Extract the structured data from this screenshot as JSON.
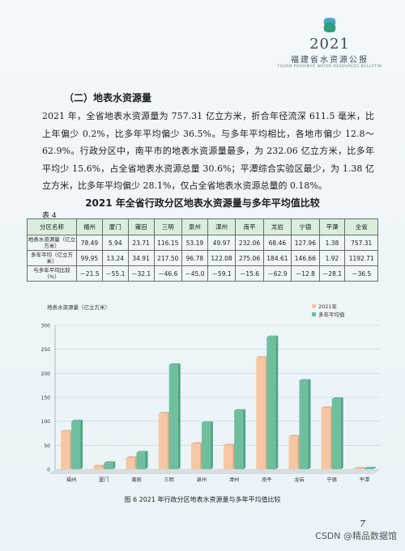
{
  "header": {
    "year": "2021",
    "title_cn": "福建省水资源公报",
    "title_en": "FUJIAN PROVINCE WATER RESOURCES BULLETIN"
  },
  "section_title": "（二）地表水资源量",
  "paragraph": "2021 年，全省地表水资源量为 757.31 亿立方米，折合年径流深 611.5 毫米，比上年偏少 0.2%，比多年平均偏少 36.5%。与多年平均相比，各地市偏少 12.8～62.9%。行政分区中，南平市的地表水资源量最多，为 232.06 亿立方米，比多年平均少 15.6%，占全省地表水资源总量 30.6%；平潭综合实验区最少，为 1.38 亿立方米，比多年平均偏少 28.1%，仅占全省地表水资源总量的 0.18%。",
  "table": {
    "title": "2021 年全省行政分区地表水资源量与多年平均值比较",
    "label": "表 4",
    "header_first": "分区名称",
    "regions": [
      "福州",
      "厦门",
      "莆田",
      "三明",
      "泉州",
      "漳州",
      "南平",
      "龙岩",
      "宁德",
      "平潭",
      "全省"
    ],
    "rows": [
      {
        "head": "地表水资源量（亿立方米）",
        "values": [
          "78.49",
          "5.94",
          "23.71",
          "116.15",
          "53.19",
          "49.97",
          "232.06",
          "68.46",
          "127.96",
          "1.38",
          "757.31"
        ]
      },
      {
        "head": "多年平均（亿立方米）",
        "values": [
          "99.95",
          "13.24",
          "34.91",
          "217.50",
          "96.78",
          "122.08",
          "275.06",
          "184.61",
          "146.66",
          "1.92",
          "1192.71"
        ]
      },
      {
        "head": "与多年平均比较（%）",
        "values": [
          "－21.5",
          "－55.1",
          "－32.1",
          "－46.6",
          "－45.0",
          "－59.1",
          "－15.6",
          "－62.9",
          "－12.8",
          "－28.1",
          "－36.5"
        ]
      }
    ]
  },
  "chart_data": {
    "type": "bar",
    "ylabel": "地表水资源量（亿立方米）",
    "ylim": [
      0,
      300
    ],
    "yticks": [
      0,
      50,
      100,
      150,
      200,
      250,
      300
    ],
    "categories": [
      "福州",
      "厦门",
      "莆田",
      "三明",
      "泉州",
      "漳州",
      "南平",
      "龙岩",
      "宁德",
      "平潭"
    ],
    "series": [
      {
        "name": "2021年",
        "values": [
          78.49,
          5.94,
          23.71,
          116.15,
          53.19,
          49.97,
          232.06,
          68.46,
          127.96,
          1.38
        ]
      },
      {
        "name": "多年平均值",
        "values": [
          99.95,
          13.24,
          34.91,
          217.5,
          96.78,
          122.08,
          275.06,
          184.61,
          146.66,
          1.92
        ]
      }
    ],
    "legend": "top-right",
    "colors": {
      "series_2021": "#f6c7a4",
      "series_avg": "#6fbf9e"
    }
  },
  "caption": "图 6   2021 年行政分区地表水资源量与多年平均值比较",
  "page_number": "7",
  "watermark": "CSDN @精品数据馆"
}
